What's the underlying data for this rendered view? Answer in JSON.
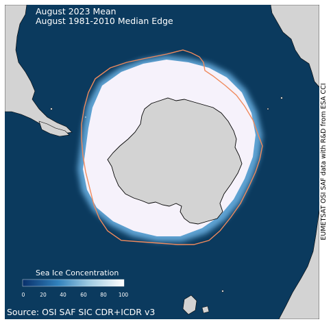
{
  "map": {
    "title_mean": "August 2023 Mean",
    "title_median": "August 1981-2010 Median Edge",
    "colorbar": {
      "label": "Sea Ice Concentration",
      "ticks": [
        "0",
        "20",
        "40",
        "60",
        "80",
        "100"
      ],
      "colors": [
        "#08306b",
        "#3182bd",
        "#9ecae1",
        "#ffffff"
      ]
    },
    "source": "Source: OSI SAF SIC CDR+ICDR v3",
    "credit": "EUMETSAT OSI SAF data with R&D from ESA CCI",
    "colors": {
      "ocean": "#0b3a5e",
      "land": "#d3d3d3",
      "median_edge": "#f08a5d",
      "ice": "#f6f2fb"
    }
  }
}
